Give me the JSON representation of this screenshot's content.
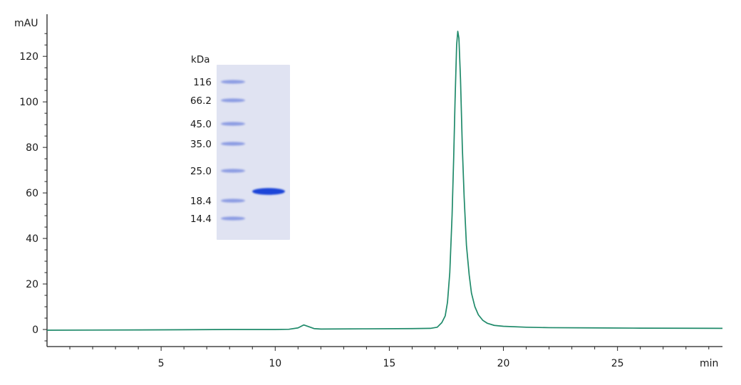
{
  "chart_data": {
    "type": "line",
    "title": "",
    "xlabel": "min",
    "ylabel": "mAU",
    "xlim": [
      0,
      29.6
    ],
    "ylim": [
      -7.5,
      136
    ],
    "x_ticks": [
      5,
      10,
      15,
      20,
      25
    ],
    "y_ticks": [
      0,
      20,
      40,
      60,
      80,
      100,
      120
    ],
    "grid": false,
    "line_color": "#1f8a6a",
    "series": [
      {
        "points": [
          [
            0,
            -0.3
          ],
          [
            4,
            -0.2
          ],
          [
            8,
            0
          ],
          [
            10,
            0
          ],
          [
            10.6,
            0.1
          ],
          [
            11.0,
            0.7
          ],
          [
            11.25,
            2.0
          ],
          [
            11.45,
            1.3
          ],
          [
            11.7,
            0.4
          ],
          [
            12,
            0.2
          ],
          [
            14,
            0.3
          ],
          [
            16,
            0.4
          ],
          [
            16.8,
            0.5
          ],
          [
            17.1,
            1
          ],
          [
            17.3,
            3
          ],
          [
            17.45,
            6
          ],
          [
            17.55,
            12
          ],
          [
            17.65,
            25
          ],
          [
            17.75,
            50
          ],
          [
            17.82,
            75
          ],
          [
            17.88,
            100
          ],
          [
            17.95,
            125
          ],
          [
            18.0,
            131
          ],
          [
            18.05,
            128
          ],
          [
            18.12,
            110
          ],
          [
            18.2,
            80
          ],
          [
            18.28,
            58
          ],
          [
            18.38,
            37
          ],
          [
            18.5,
            24
          ],
          [
            18.6,
            16
          ],
          [
            18.75,
            10
          ],
          [
            18.9,
            6.5
          ],
          [
            19.1,
            4
          ],
          [
            19.3,
            2.7
          ],
          [
            19.6,
            1.8
          ],
          [
            20,
            1.4
          ],
          [
            21,
            1.0
          ],
          [
            22,
            0.8
          ],
          [
            24,
            0.7
          ],
          [
            26,
            0.6
          ],
          [
            28,
            0.55
          ],
          [
            29.6,
            0.5
          ]
        ]
      }
    ]
  },
  "gel_inset": {
    "unit": "kDa",
    "marker_labels": [
      "116",
      "66.2",
      "45.0",
      "35.0",
      "25.0",
      "18.4",
      "14.4"
    ],
    "background_color": "#e0e3f2",
    "band_color": "#1e44d8"
  }
}
